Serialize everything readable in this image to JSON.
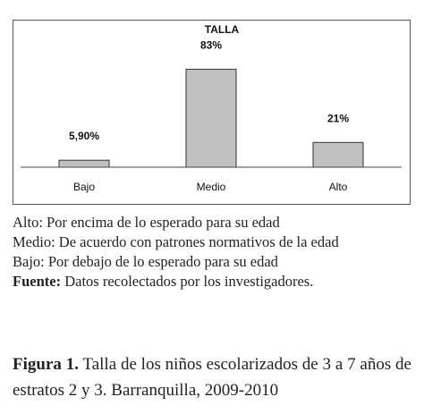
{
  "chart_data": {
    "type": "bar",
    "title": "TALLA",
    "categories": [
      "Bajo",
      "Medio",
      "Alto"
    ],
    "values": [
      5.9,
      83,
      21
    ],
    "data_labels": [
      "5,90%",
      "83%",
      "21%"
    ],
    "ylim": [
      0,
      100
    ],
    "grid": false,
    "bar_color": "#c0c0c0",
    "bar_stroke": "#333333"
  },
  "notes": {
    "alto": "Alto: Por encima de lo esperado para su edad",
    "medio": "Medio: De acuerdo con patrones normativos de la edad",
    "bajo": "Bajo: Por debajo de lo esperado para su edad",
    "fuente_label": "Fuente:",
    "fuente_text": " Datos recolectados por los investigadores."
  },
  "caption": {
    "label": "Figura 1.",
    "text": " Talla de los niños escolarizados de 3 a 7 años de estratos 2 y 3. Barranquilla, 2009-2010"
  }
}
